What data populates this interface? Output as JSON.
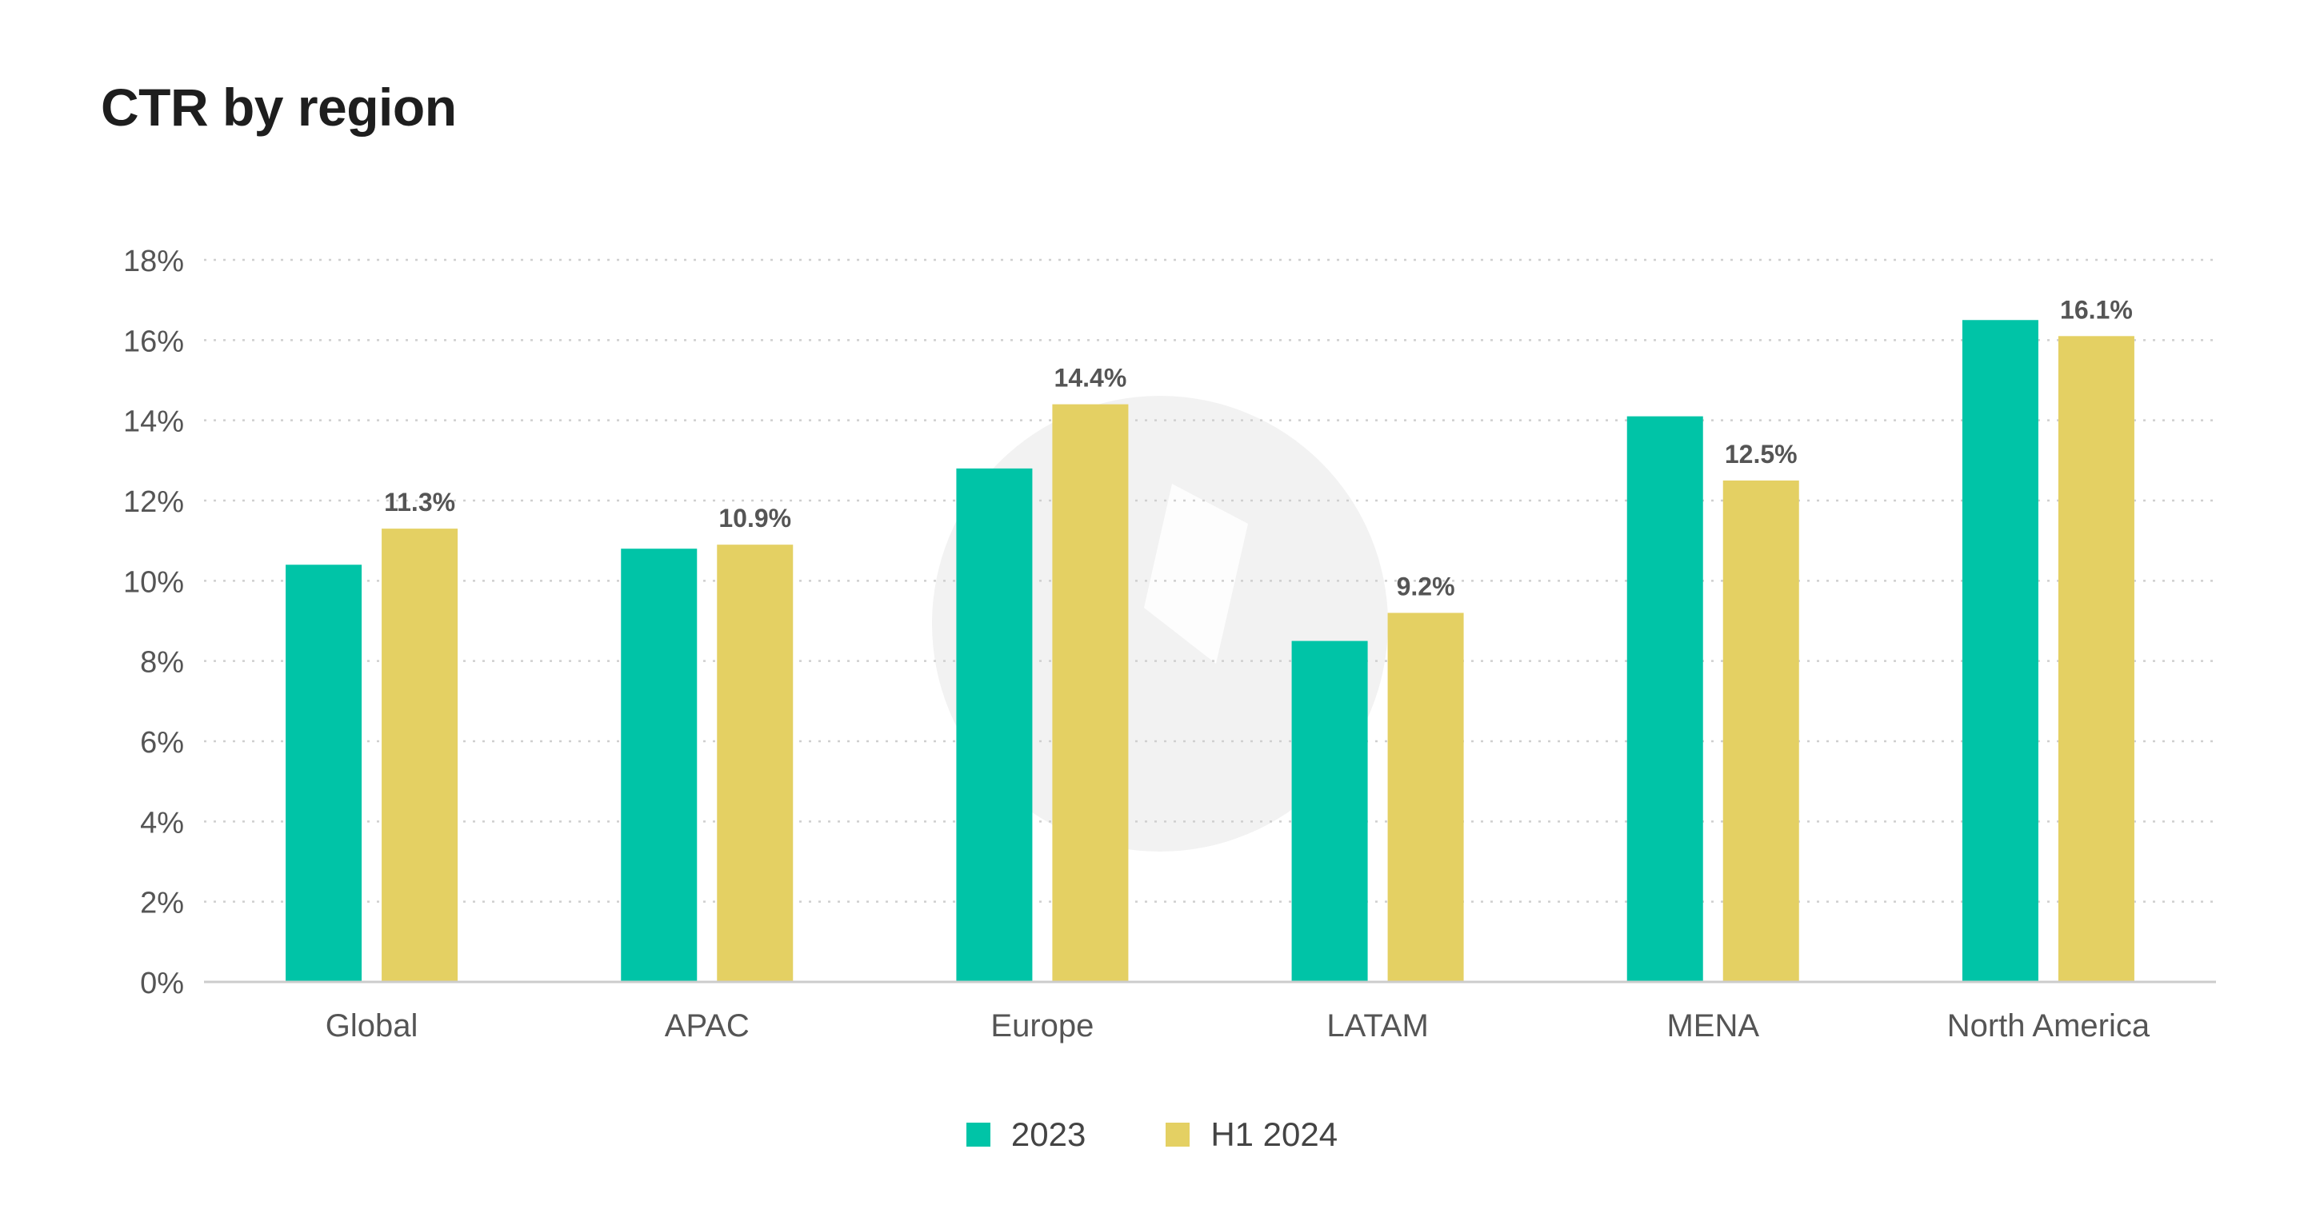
{
  "title": "CTR by region",
  "colors": {
    "series_2023": "#00c4a7",
    "series_h1_2024": "#e4d063",
    "grid": "#cfcfcf",
    "axis": "#cccccc",
    "tick_text": "#555555",
    "data_label": "#555555",
    "watermark": "#f2f2f2"
  },
  "watermark": {
    "icon": "logo-watermark-icon"
  },
  "chart_data": {
    "type": "bar",
    "title": "CTR by region",
    "xlabel": "",
    "ylabel": "",
    "categories": [
      "Global",
      "APAC",
      "Europe",
      "LATAM",
      "MENA",
      "North America"
    ],
    "series": [
      {
        "name": "2023",
        "values": [
          10.4,
          10.8,
          12.8,
          8.5,
          14.1,
          16.5
        ]
      },
      {
        "name": "H1 2024",
        "values": [
          11.3,
          10.9,
          14.4,
          9.2,
          12.5,
          16.1
        ]
      }
    ],
    "data_labels": {
      "series_index": 1,
      "labels": [
        "11.3%",
        "10.9%",
        "14.4%",
        "9.2%",
        "12.5%",
        "16.1%"
      ]
    },
    "ylim": [
      0,
      18
    ],
    "y_ticks": [
      0,
      2,
      4,
      6,
      8,
      10,
      12,
      14,
      16,
      18
    ],
    "y_tick_labels": [
      "0%",
      "2%",
      "4%",
      "6%",
      "8%",
      "10%",
      "12%",
      "14%",
      "16%",
      "18%"
    ],
    "grid": true,
    "grid_style": "dotted",
    "legend_position": "bottom-center"
  }
}
